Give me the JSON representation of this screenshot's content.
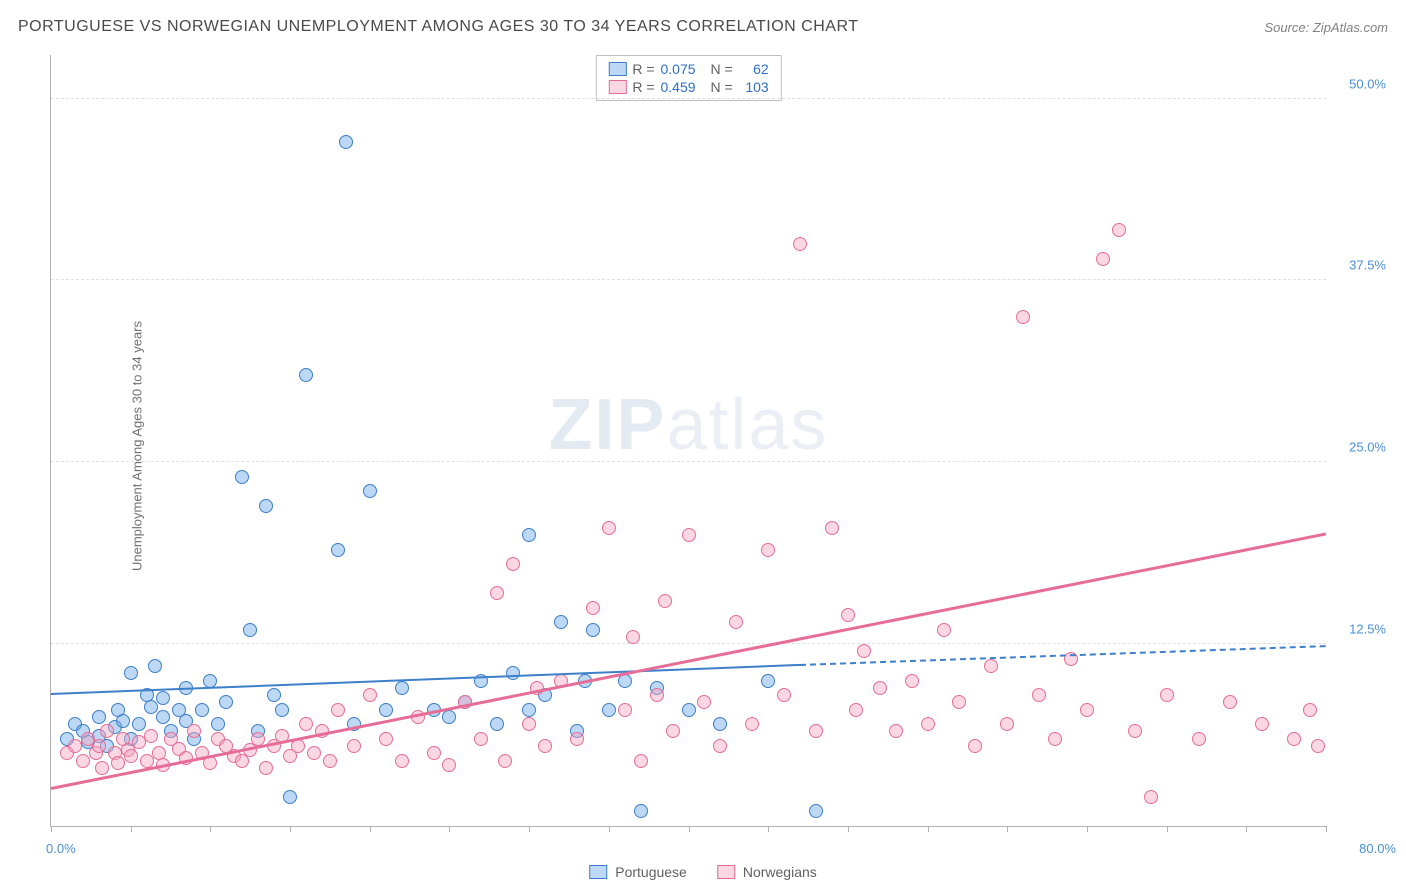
{
  "header": {
    "title": "PORTUGUESE VS NORWEGIAN UNEMPLOYMENT AMONG AGES 30 TO 34 YEARS CORRELATION CHART",
    "source": "Source: ZipAtlas.com"
  },
  "watermark": {
    "part1": "ZIP",
    "part2": "atlas"
  },
  "chart": {
    "type": "scatter",
    "ylabel": "Unemployment Among Ages 30 to 34 years",
    "xlim": [
      0,
      80
    ],
    "ylim": [
      0,
      53
    ],
    "x_origin_label": "0.0%",
    "x_max_label": "80.0%",
    "yticks": [
      12.5,
      25.0,
      37.5,
      50.0
    ],
    "ytick_labels": [
      "12.5%",
      "25.0%",
      "37.5%",
      "50.0%"
    ],
    "xtick_positions": [
      0,
      5,
      10,
      15,
      20,
      25,
      30,
      35,
      40,
      45,
      50,
      55,
      60,
      65,
      70,
      75,
      80
    ],
    "background_color": "#ffffff",
    "grid_color": "#e0e0e0",
    "axis_color": "#b0b0b0",
    "marker_radius": 7,
    "marker_opacity": 0.55,
    "series": [
      {
        "name": "Portuguese",
        "color": "#6aa8e8",
        "stroke": "#3d7fc9",
        "fill": "rgba(106,168,232,0.45)",
        "R": "0.075",
        "N": "62",
        "trend": {
          "x1": 0,
          "y1": 9.0,
          "x2": 47,
          "y2": 11.0,
          "x2_dash": 80,
          "y2_dash": 12.3,
          "width": 2
        },
        "points": [
          [
            1,
            6
          ],
          [
            1.5,
            7
          ],
          [
            2,
            6.5
          ],
          [
            2.3,
            5.8
          ],
          [
            3,
            6.2
          ],
          [
            3,
            7.5
          ],
          [
            3.5,
            5.5
          ],
          [
            4,
            6.8
          ],
          [
            4.2,
            8
          ],
          [
            4.5,
            7.2
          ],
          [
            5,
            6
          ],
          [
            5,
            10.5
          ],
          [
            5.5,
            7
          ],
          [
            6,
            9
          ],
          [
            6.3,
            8.2
          ],
          [
            6.5,
            11
          ],
          [
            7,
            7.5
          ],
          [
            7,
            8.8
          ],
          [
            7.5,
            6.5
          ],
          [
            8,
            8
          ],
          [
            8.5,
            7.2
          ],
          [
            8.5,
            9.5
          ],
          [
            9,
            6
          ],
          [
            9.5,
            8
          ],
          [
            10,
            10
          ],
          [
            10.5,
            7
          ],
          [
            11,
            8.5
          ],
          [
            12,
            24
          ],
          [
            12.5,
            13.5
          ],
          [
            13,
            6.5
          ],
          [
            13.5,
            22
          ],
          [
            14,
            9
          ],
          [
            14.5,
            8
          ],
          [
            15,
            2
          ],
          [
            16,
            31
          ],
          [
            18,
            19
          ],
          [
            18.5,
            47
          ],
          [
            19,
            7
          ],
          [
            20,
            23
          ],
          [
            21,
            8
          ],
          [
            22,
            9.5
          ],
          [
            24,
            8
          ],
          [
            25,
            7.5
          ],
          [
            26,
            8.5
          ],
          [
            27,
            10
          ],
          [
            28,
            7
          ],
          [
            29,
            10.5
          ],
          [
            30,
            8
          ],
          [
            30,
            20
          ],
          [
            31,
            9
          ],
          [
            32,
            14
          ],
          [
            33,
            6.5
          ],
          [
            33.5,
            10
          ],
          [
            34,
            13.5
          ],
          [
            35,
            8
          ],
          [
            36,
            10
          ],
          [
            37,
            1
          ],
          [
            38,
            9.5
          ],
          [
            40,
            8
          ],
          [
            42,
            7
          ],
          [
            45,
            10
          ],
          [
            48,
            1
          ]
        ]
      },
      {
        "name": "Norwegians",
        "color": "#f4a6c0",
        "stroke": "#e66d97",
        "fill": "rgba(244,166,192,0.45)",
        "R": "0.459",
        "N": "103",
        "trend": {
          "x1": 0,
          "y1": 2.5,
          "x2": 80,
          "y2": 20.0,
          "width": 2.5
        },
        "points": [
          [
            1,
            5
          ],
          [
            1.5,
            5.5
          ],
          [
            2,
            4.5
          ],
          [
            2.3,
            6
          ],
          [
            2.8,
            5
          ],
          [
            3,
            5.5
          ],
          [
            3.2,
            4
          ],
          [
            3.5,
            6.5
          ],
          [
            4,
            5
          ],
          [
            4.2,
            4.3
          ],
          [
            4.5,
            6
          ],
          [
            4.8,
            5.2
          ],
          [
            5,
            4.8
          ],
          [
            5.5,
            5.8
          ],
          [
            6,
            4.5
          ],
          [
            6.3,
            6.2
          ],
          [
            6.8,
            5
          ],
          [
            7,
            4.2
          ],
          [
            7.5,
            6
          ],
          [
            8,
            5.3
          ],
          [
            8.5,
            4.7
          ],
          [
            9,
            6.5
          ],
          [
            9.5,
            5
          ],
          [
            10,
            4.3
          ],
          [
            10.5,
            6
          ],
          [
            11,
            5.5
          ],
          [
            11.5,
            4.8
          ],
          [
            12,
            4.5
          ],
          [
            12.5,
            5.2
          ],
          [
            13,
            6
          ],
          [
            13.5,
            4
          ],
          [
            14,
            5.5
          ],
          [
            14.5,
            6.2
          ],
          [
            15,
            4.8
          ],
          [
            15.5,
            5.5
          ],
          [
            16,
            7
          ],
          [
            16.5,
            5
          ],
          [
            17,
            6.5
          ],
          [
            17.5,
            4.5
          ],
          [
            18,
            8
          ],
          [
            19,
            5.5
          ],
          [
            20,
            9
          ],
          [
            21,
            6
          ],
          [
            22,
            4.5
          ],
          [
            23,
            7.5
          ],
          [
            24,
            5
          ],
          [
            25,
            4.2
          ],
          [
            26,
            8.5
          ],
          [
            27,
            6
          ],
          [
            28,
            16
          ],
          [
            28.5,
            4.5
          ],
          [
            29,
            18
          ],
          [
            30,
            7
          ],
          [
            30.5,
            9.5
          ],
          [
            31,
            5.5
          ],
          [
            32,
            10
          ],
          [
            33,
            6
          ],
          [
            34,
            15
          ],
          [
            35,
            20.5
          ],
          [
            36,
            8
          ],
          [
            36.5,
            13
          ],
          [
            37,
            4.5
          ],
          [
            38,
            9
          ],
          [
            38.5,
            15.5
          ],
          [
            39,
            6.5
          ],
          [
            40,
            20
          ],
          [
            41,
            8.5
          ],
          [
            42,
            5.5
          ],
          [
            43,
            14
          ],
          [
            44,
            7
          ],
          [
            45,
            19
          ],
          [
            46,
            9
          ],
          [
            47,
            40
          ],
          [
            48,
            6.5
          ],
          [
            49,
            20.5
          ],
          [
            50,
            14.5
          ],
          [
            50.5,
            8
          ],
          [
            51,
            12
          ],
          [
            52,
            9.5
          ],
          [
            53,
            6.5
          ],
          [
            54,
            10
          ],
          [
            55,
            7
          ],
          [
            56,
            13.5
          ],
          [
            57,
            8.5
          ],
          [
            58,
            5.5
          ],
          [
            59,
            11
          ],
          [
            60,
            7
          ],
          [
            61,
            35
          ],
          [
            62,
            9
          ],
          [
            63,
            6
          ],
          [
            64,
            11.5
          ],
          [
            65,
            8
          ],
          [
            66,
            39
          ],
          [
            67,
            41
          ],
          [
            68,
            6.5
          ],
          [
            69,
            2
          ],
          [
            70,
            9
          ],
          [
            72,
            6
          ],
          [
            74,
            8.5
          ],
          [
            76,
            7
          ],
          [
            78,
            6
          ],
          [
            79,
            8
          ],
          [
            79.5,
            5.5
          ]
        ]
      }
    ]
  },
  "legend_bottom": [
    {
      "label": "Portuguese",
      "fill": "rgba(106,168,232,0.45)",
      "stroke": "#3d7fc9"
    },
    {
      "label": "Norwegians",
      "fill": "rgba(244,166,192,0.45)",
      "stroke": "#e66d97"
    }
  ]
}
